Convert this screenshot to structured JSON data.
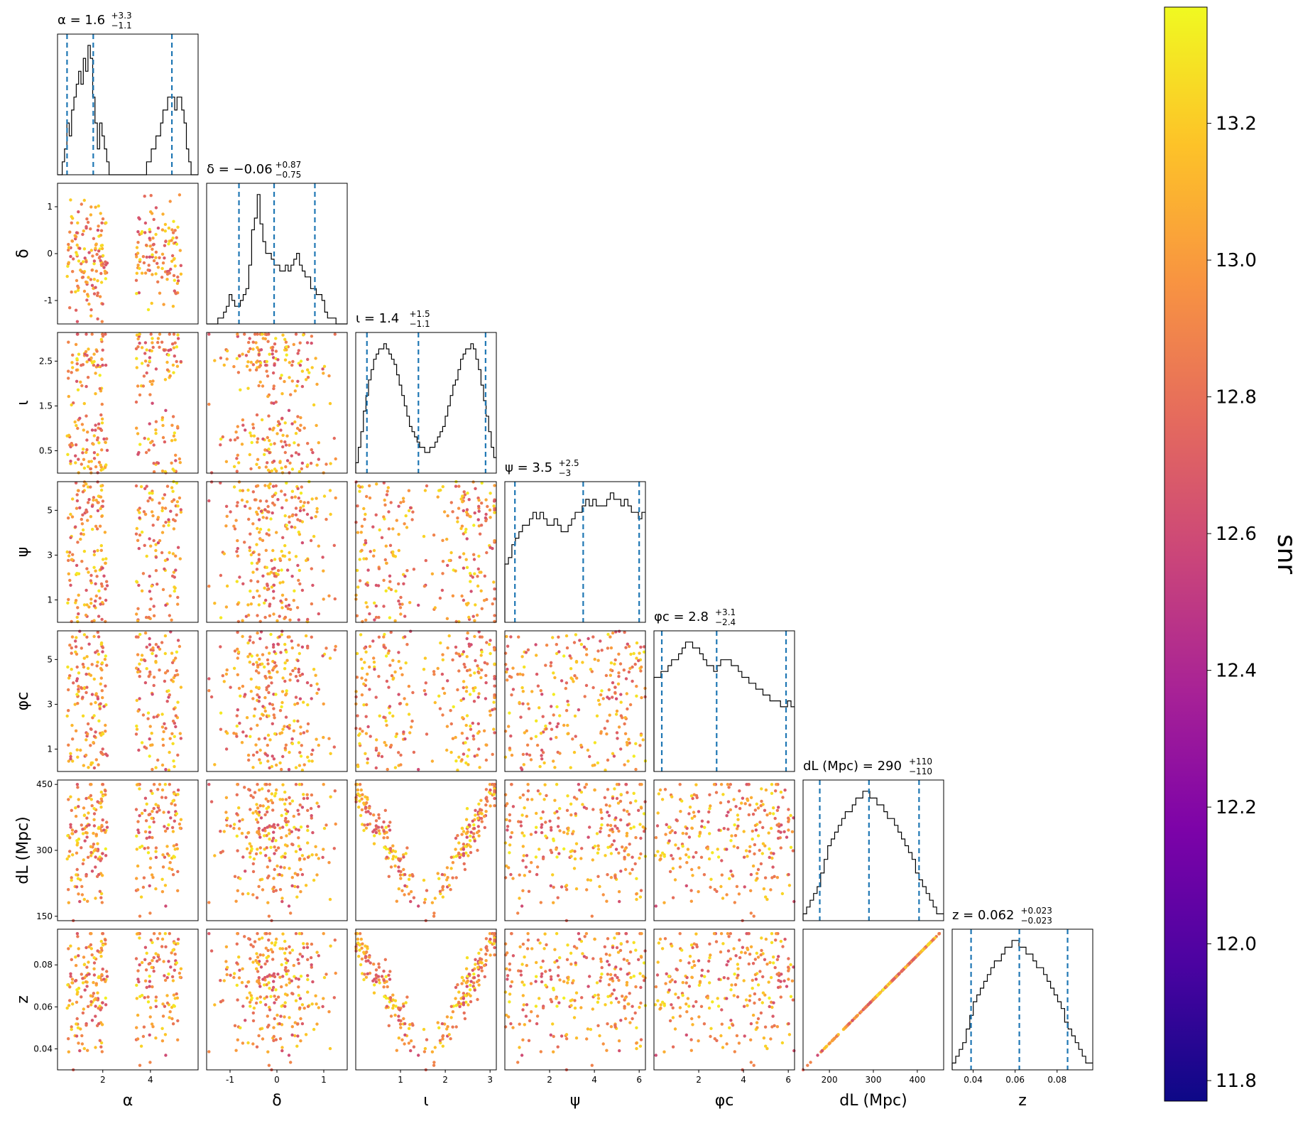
{
  "chart_data": {
    "type": "scatter",
    "subtype": "corner-plot",
    "parameters": [
      {
        "key": "alpha",
        "label": "α",
        "range": [
          0.1,
          6.0
        ],
        "ticks": [
          2,
          4
        ],
        "title": "α = 1.6",
        "sup": "+3.3",
        "sub": "−1.1",
        "median": 1.6,
        "lo": 0.5,
        "hi": 4.9,
        "hist": [
          0,
          0,
          1,
          2,
          4,
          3,
          5,
          6,
          7,
          8,
          7,
          9,
          8,
          10,
          9,
          6,
          4,
          2,
          4,
          3,
          2,
          1,
          0,
          0,
          0,
          0,
          0,
          0,
          0,
          0,
          0,
          0,
          0,
          0,
          0,
          0,
          0,
          0,
          1,
          1,
          2,
          2,
          3,
          3,
          4,
          5,
          5,
          6,
          6,
          6,
          5,
          6,
          6,
          5,
          4,
          2,
          1,
          0,
          0,
          0
        ]
      },
      {
        "key": "delta",
        "label": "δ",
        "range": [
          -1.5,
          1.5
        ],
        "ticks": [
          -1,
          0,
          1
        ],
        "title": "δ = −0.06",
        "sup": "+0.87",
        "sub": "−0.75",
        "median": -0.06,
        "lo": -0.81,
        "hi": 0.81,
        "hist": [
          0,
          0,
          0,
          0,
          1,
          1,
          2,
          3,
          5,
          4,
          3,
          3,
          4,
          5,
          6,
          10,
          16,
          18,
          22,
          17,
          14,
          12,
          12,
          11,
          10,
          10,
          9,
          9,
          10,
          9,
          10,
          11,
          12,
          10,
          9,
          8,
          8,
          6,
          6,
          5,
          5,
          4,
          2,
          1,
          1,
          1,
          0,
          0,
          0,
          0
        ]
      },
      {
        "key": "iota",
        "label": "ι",
        "range": [
          0.0,
          3.14
        ],
        "ticks": [
          1,
          2,
          3
        ],
        "ticklabel_y": [
          0.5,
          1.5,
          2.5
        ],
        "title": "ι = 1.4",
        "sup": "+1.5",
        "sub": "−1.1",
        "median": 1.4,
        "lo": 0.25,
        "hi": 2.9,
        "hist": [
          2,
          5,
          8,
          12,
          15,
          18,
          20,
          22,
          23,
          24,
          24,
          25,
          24,
          23,
          22,
          21,
          19,
          17,
          15,
          13,
          11,
          9,
          8,
          7,
          6,
          5,
          5,
          4,
          4,
          5,
          5,
          6,
          7,
          8,
          9,
          11,
          13,
          15,
          17,
          18,
          20,
          22,
          23,
          24,
          24,
          25,
          24,
          22,
          20,
          17,
          14,
          11,
          8,
          5,
          3
        ]
      },
      {
        "key": "psi",
        "label": "ψ",
        "range": [
          0.0,
          6.28
        ],
        "ticks": [
          2,
          4,
          6
        ],
        "ticklabel_y": [
          1,
          3,
          5
        ],
        "title": "ψ = 3.5",
        "sup": "+2.5",
        "sub": "−3",
        "median": 3.5,
        "lo": 0.45,
        "hi": 6.0,
        "hist": [
          9,
          10,
          12,
          13,
          14,
          15,
          15,
          16,
          17,
          16,
          17,
          16,
          15,
          15,
          16,
          15,
          14,
          14,
          15,
          16,
          17,
          17,
          18,
          19,
          18,
          19,
          18,
          18,
          18,
          19,
          20,
          19,
          19,
          18,
          19,
          18,
          17,
          17,
          16,
          17
        ]
      },
      {
        "key": "phic",
        "label": "φc",
        "range": [
          0.0,
          6.28
        ],
        "ticks": [
          2,
          4,
          6
        ],
        "ticklabel_y": [
          1,
          3,
          5
        ],
        "title": "φc = 2.8",
        "sup": "+3.1",
        "sub": "−2.4",
        "median": 2.8,
        "lo": 0.35,
        "hi": 5.9,
        "hist": [
          16,
          16,
          17,
          17,
          18,
          19,
          19,
          20,
          21,
          22,
          22,
          21,
          21,
          20,
          19,
          18,
          18,
          17,
          18,
          19,
          19,
          19,
          18,
          18,
          17,
          16,
          16,
          15,
          15,
          14,
          14,
          13,
          13,
          12,
          12,
          12,
          11,
          11,
          12,
          11
        ]
      },
      {
        "key": "dL",
        "label": "dL (Mpc)",
        "range": [
          140,
          460
        ],
        "ticks": [
          200,
          300,
          400
        ],
        "ticklabel_y": [
          150,
          300,
          450
        ],
        "title": "dL (Mpc) = 290",
        "sup": "+110",
        "sub": "−110",
        "median": 290,
        "lo": 178,
        "hi": 404,
        "hist": [
          1,
          2,
          3,
          4,
          5,
          7,
          9,
          11,
          12,
          13,
          14,
          15,
          16,
          16,
          17,
          18,
          18,
          19,
          19,
          18,
          18,
          17,
          17,
          16,
          15,
          15,
          14,
          13,
          12,
          11,
          10,
          9,
          7,
          6,
          5,
          4,
          3,
          2,
          1,
          1
        ]
      },
      {
        "key": "z",
        "label": "z",
        "range": [
          0.03,
          0.097
        ],
        "ticks": [
          0.04,
          0.06,
          0.08
        ],
        "ticklabel_y": [
          0.04,
          0.06,
          0.08
        ],
        "title": "z = 0.062",
        "sup": "+0.023",
        "sub": "−0.023",
        "median": 0.062,
        "lo": 0.039,
        "hi": 0.085,
        "hist": [
          1,
          2,
          3,
          4,
          6,
          8,
          10,
          11,
          12,
          13,
          14,
          15,
          16,
          16,
          17,
          18,
          18,
          19,
          19,
          18,
          18,
          17,
          17,
          16,
          15,
          15,
          14,
          13,
          12,
          11,
          10,
          9,
          7,
          6,
          5,
          4,
          3,
          2,
          1,
          1
        ]
      }
    ],
    "colorbar": {
      "label": "snr",
      "range": [
        11.77,
        13.37
      ],
      "ticks": [
        "11.8",
        "12.0",
        "12.2",
        "12.4",
        "12.6",
        "12.8",
        "13.0",
        "13.2"
      ],
      "tick_values": [
        11.8,
        12.0,
        12.2,
        12.4,
        12.6,
        12.8,
        13.0,
        13.2
      ],
      "colormap": "plasma"
    },
    "quantile_line_color": "#1f77b4",
    "hist_line_color": "#000000"
  }
}
